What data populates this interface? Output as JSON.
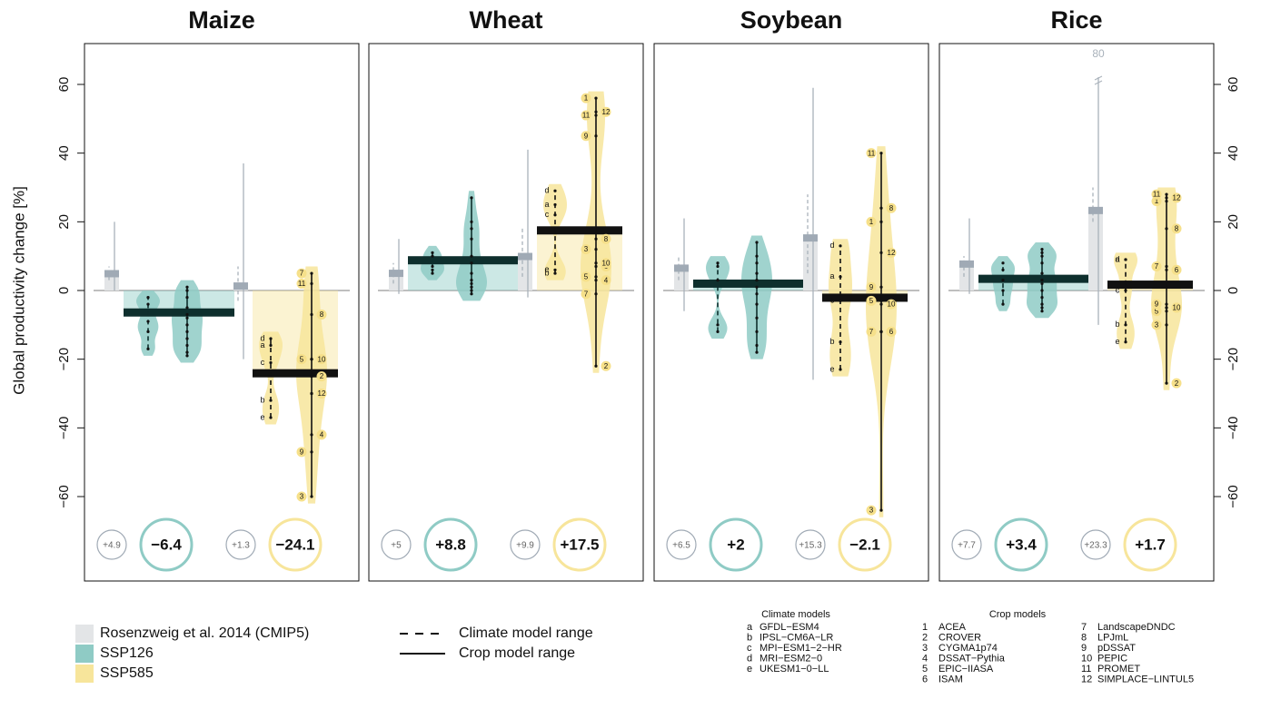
{
  "chart_data": {
    "type": "bar",
    "ylabel": "Global productivity change [%]",
    "ylim": [
      -60,
      60
    ],
    "yticks": [
      {
        "value": -60,
        "label": "−60"
      },
      {
        "value": -40,
        "label": "−40"
      },
      {
        "value": -20,
        "label": "−20"
      },
      0,
      20,
      40,
      60
    ],
    "series": [
      {
        "name": "Rosenzweig et al. 2014 (CMIP5)",
        "color": "#e3e5e7"
      },
      {
        "name": "SSP126",
        "color": "#8fcbc5"
      },
      {
        "name": "SSP585",
        "color": "#f7e59b"
      }
    ],
    "range_legend": [
      {
        "name": "Climate model range",
        "style": "dashed"
      },
      {
        "name": "Crop model range",
        "style": "solid"
      }
    ],
    "climate_models": {
      "title": "Climate models",
      "items": [
        {
          "id": "a",
          "name": "GFDL−ESM4"
        },
        {
          "id": "b",
          "name": "IPSL−CM6A−LR"
        },
        {
          "id": "c",
          "name": "MPI−ESM1−2−HR"
        },
        {
          "id": "d",
          "name": "MRI−ESM2−0"
        },
        {
          "id": "e",
          "name": "UKESM1−0−LL"
        }
      ]
    },
    "crop_models": {
      "title": "Crop models",
      "items": [
        {
          "id": "1",
          "name": "ACEA"
        },
        {
          "id": "2",
          "name": "CROVER"
        },
        {
          "id": "3",
          "name": "CYGMA1p74"
        },
        {
          "id": "4",
          "name": "DSSAT−Pythia"
        },
        {
          "id": "5",
          "name": "EPIC−IIASA"
        },
        {
          "id": "6",
          "name": "ISAM"
        },
        {
          "id": "7",
          "name": "LandscapeDNDC"
        },
        {
          "id": "8",
          "name": "LPJmL"
        },
        {
          "id": "9",
          "name": "pDSSAT"
        },
        {
          "id": "10",
          "name": "PEPIC"
        },
        {
          "id": "11",
          "name": "PROMET"
        },
        {
          "id": "12",
          "name": "SIMPLACE−LINTUL5"
        }
      ]
    },
    "panels": [
      {
        "title": "Maize",
        "ros126": {
          "mean": 4.9,
          "mean_label": "+4.9",
          "crop_range": [
            0,
            20
          ],
          "climate_range": [
            3,
            7
          ]
        },
        "ssp126": {
          "mean": -6.4,
          "mean_label": "−6.4",
          "climate": [
            -2,
            -4,
            -9,
            -12,
            -17
          ],
          "crop": [
            1,
            0,
            -2,
            -5,
            -7,
            -8,
            -10,
            -12,
            -14,
            -16,
            -18,
            -19
          ]
        },
        "ros585": {
          "mean": 1.3,
          "mean_label": "+1.3",
          "crop_range": [
            -20,
            37
          ],
          "climate_range": [
            -3,
            7
          ]
        },
        "ssp585": {
          "mean": -24.1,
          "mean_label": "−24.1",
          "climate": [
            -16,
            -32,
            -21,
            -14,
            -37
          ],
          "crop": [
            -20,
            -25,
            -60,
            -42,
            -20,
            -30,
            5,
            -7,
            -47,
            -20,
            2,
            -30
          ]
        }
      },
      {
        "title": "Wheat",
        "ros126": {
          "mean": 5,
          "mean_label": "+5",
          "crop_range": [
            -1,
            15
          ],
          "climate_range": [
            2,
            8
          ]
        },
        "ssp126": {
          "mean": 8.8,
          "mean_label": "+8.8",
          "climate": [
            11,
            10,
            7,
            6,
            5
          ],
          "crop": [
            27,
            20,
            15,
            10,
            8,
            5,
            3,
            2,
            1,
            0,
            -1,
            18
          ]
        },
        "ros585": {
          "mean": 9.9,
          "mean_label": "+9.9",
          "crop_range": [
            -2,
            41
          ],
          "climate_range": [
            4,
            18
          ]
        },
        "ssp585": {
          "mean": 17.5,
          "mean_label": "+17.5",
          "climate": [
            25,
            5,
            22,
            29,
            6
          ],
          "crop": [
            56,
            -22,
            12,
            3,
            4,
            7,
            -1,
            15,
            45,
            8,
            51,
            52
          ]
        }
      },
      {
        "title": "Soybean",
        "ros126": {
          "mean": 6.5,
          "mean_label": "+6.5",
          "crop_range": [
            -6,
            21
          ],
          "climate_range": [
            3,
            10
          ]
        },
        "ssp126": {
          "mean": 2,
          "mean_label": "+2",
          "climate": [
            8,
            7,
            3,
            -10,
            -12
          ],
          "crop": [
            14,
            10,
            8,
            5,
            3,
            1,
            -1,
            -4,
            -8,
            -12,
            -16,
            -18
          ]
        },
        "ros585": {
          "mean": 15.3,
          "mean_label": "+15.3",
          "crop_range": [
            -26,
            59
          ],
          "climate_range": [
            5,
            28
          ]
        },
        "ssp585": {
          "mean": -2.1,
          "mean_label": "−2.1",
          "climate": [
            4,
            -15,
            -3,
            13,
            -23
          ],
          "crop": [
            20,
            -12,
            -64,
            -12,
            -3,
            -12,
            -12,
            24,
            1,
            -4,
            40,
            11
          ]
        }
      },
      {
        "title": "Rice",
        "ros126": {
          "mean": 7.7,
          "mean_label": "+7.7",
          "crop_range": [
            -1,
            21
          ],
          "climate_range": [
            4,
            10
          ]
        },
        "ssp126": {
          "mean": 3.4,
          "mean_label": "+3.4",
          "climate": [
            8,
            6,
            3,
            0,
            -4
          ],
          "crop": [
            12,
            10,
            8,
            5,
            3,
            2,
            0,
            -2,
            -4,
            -5,
            -6,
            11
          ]
        },
        "ros585": {
          "mean": 23.3,
          "mean_label": "+23.3",
          "crop_range": [
            -10,
            80
          ],
          "climate_range": [
            20,
            30
          ]
        },
        "ssp585": {
          "mean": 1.7,
          "mean_label": "+1.7",
          "climate": [
            9,
            -10,
            0,
            9,
            -15
          ],
          "crop": [
            26,
            -27,
            -10,
            -5,
            -6,
            6,
            7,
            18,
            -4,
            -5,
            28,
            27
          ]
        }
      }
    ]
  }
}
